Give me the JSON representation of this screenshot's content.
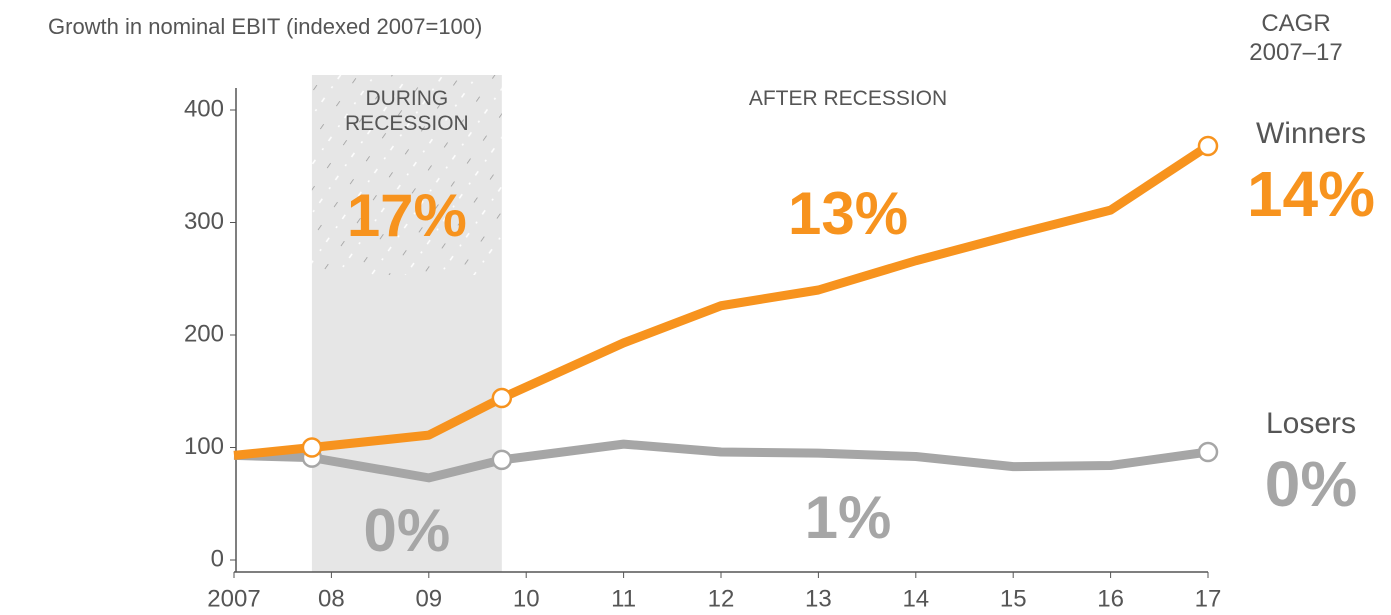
{
  "chart_data": {
    "type": "line",
    "title": "Growth in nominal EBIT (indexed 2007=100)",
    "x": [
      2007,
      2007.8,
      2009,
      2009.75,
      2011,
      2012,
      2013,
      2014,
      2015,
      2016,
      2017
    ],
    "series": [
      {
        "name": "Winners",
        "color": "#f7931e",
        "values": [
          93,
          100,
          111,
          144,
          193,
          226,
          240,
          266,
          289,
          311,
          368
        ]
      },
      {
        "name": "Losers",
        "color": "#a6a6a6",
        "values": [
          93,
          91,
          73,
          89,
          103,
          96,
          95,
          92,
          83,
          84,
          96
        ]
      }
    ],
    "xlim": [
      2007,
      2017
    ],
    "xticks": [
      {
        "value": 2007,
        "label": "2007"
      },
      {
        "value": 2008,
        "label": "08"
      },
      {
        "value": 2009,
        "label": "09"
      },
      {
        "value": 2010,
        "label": "10"
      },
      {
        "value": 2011,
        "label": "11"
      },
      {
        "value": 2012,
        "label": "12"
      },
      {
        "value": 2013,
        "label": "13"
      },
      {
        "value": 2014,
        "label": "14"
      },
      {
        "value": 2015,
        "label": "15"
      },
      {
        "value": 2016,
        "label": "16"
      },
      {
        "value": 2017,
        "label": "17"
      }
    ],
    "ylim": [
      0,
      420
    ],
    "yticks": [
      0,
      100,
      200,
      300,
      400
    ],
    "shaded_region": [
      2007.8,
      2009.75
    ],
    "annotations": {
      "during": "DURING RECESSION",
      "after": "AFTER RECESSION",
      "during_winners": "17%",
      "after_winners": "13%",
      "during_losers": "0%",
      "after_losers": "1%",
      "cagr_header": "CAGR 2007–17",
      "winners_cagr": "14%",
      "losers_cagr": "0%"
    }
  }
}
